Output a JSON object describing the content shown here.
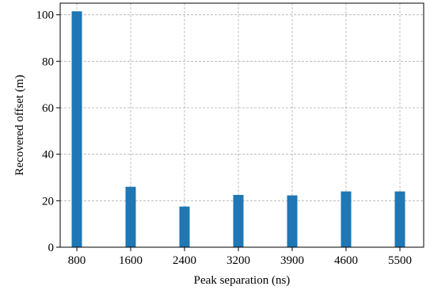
{
  "chart_data": {
    "type": "bar",
    "categories": [
      "800",
      "1600",
      "2400",
      "3200",
      "3900",
      "4600",
      "5500"
    ],
    "values": [
      101.5,
      26,
      17.5,
      22.5,
      22.3,
      24,
      24
    ],
    "title": "",
    "xlabel": "Peak separation (ns)",
    "ylabel": "Recovered offset (m)",
    "ylim": [
      0,
      105
    ],
    "yticks": [
      0,
      20,
      40,
      60,
      80,
      100
    ],
    "grid": true,
    "bar_color": "#1f77b4"
  }
}
